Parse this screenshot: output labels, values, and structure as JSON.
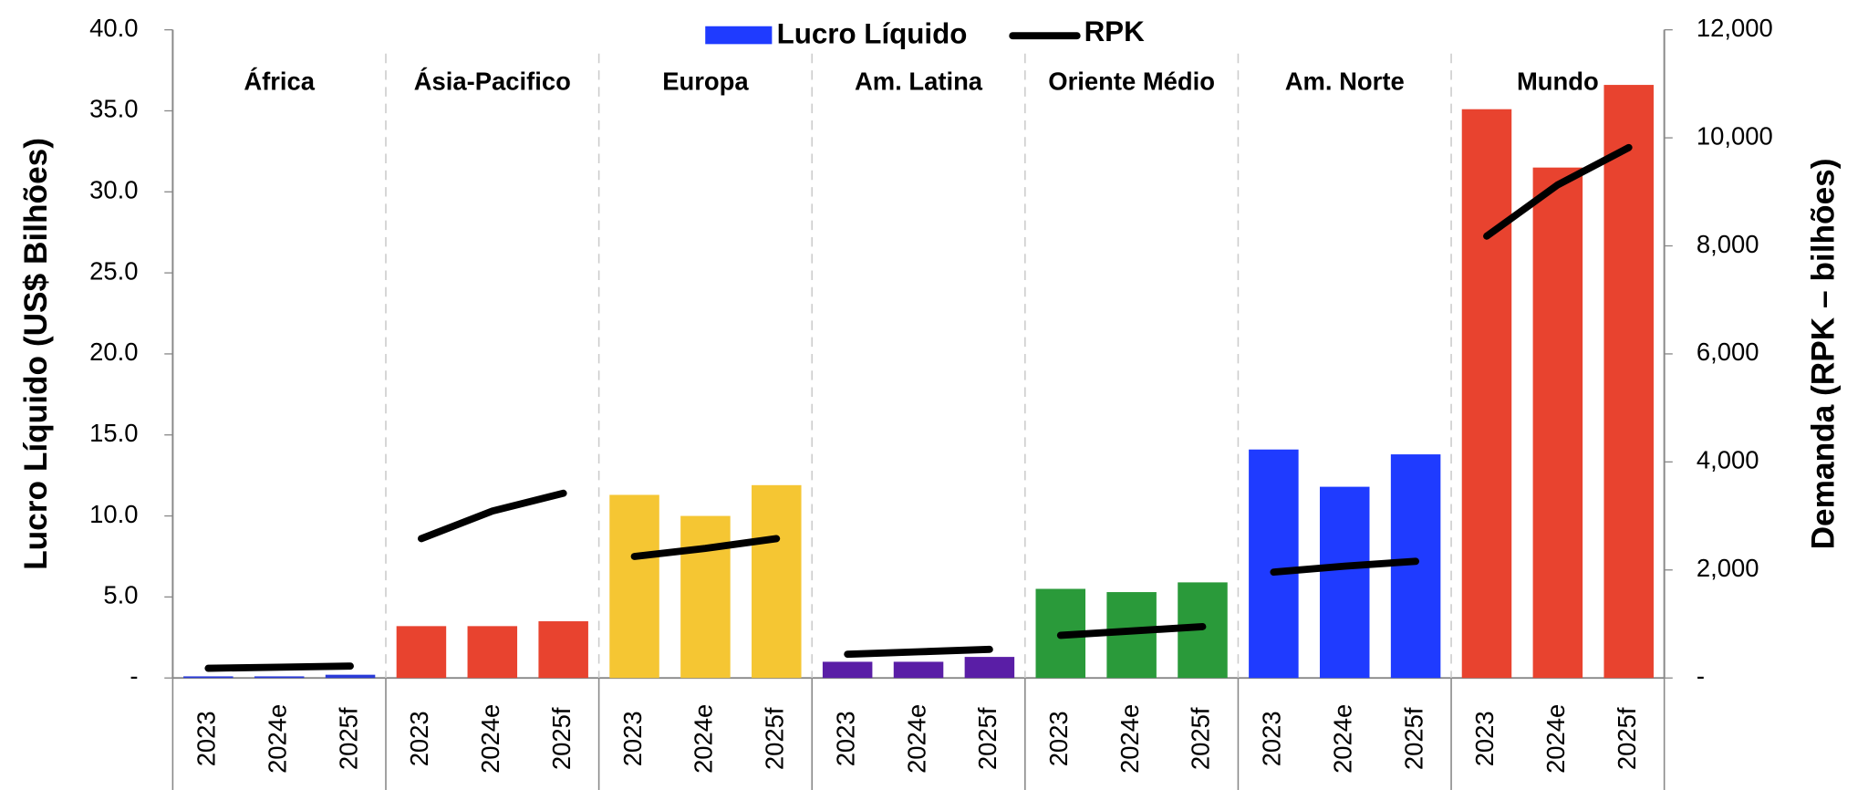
{
  "chart_data": {
    "type": "bar",
    "y_label": "Lucro Líquido (US$ Bilhões)",
    "y2_label": "Demanda (RPK – bilhões)",
    "ylim": [
      0,
      40
    ],
    "yticks": [
      {
        "value": 0,
        "label": "-"
      },
      {
        "value": 5,
        "label": "5.0"
      },
      {
        "value": 10,
        "label": "10.0"
      },
      {
        "value": 15,
        "label": "15.0"
      },
      {
        "value": 20,
        "label": "20.0"
      },
      {
        "value": 25,
        "label": "25.0"
      },
      {
        "value": 30,
        "label": "30.0"
      },
      {
        "value": 35,
        "label": "35.0"
      },
      {
        "value": 40,
        "label": "40.0"
      }
    ],
    "y2lim": [
      0,
      12000
    ],
    "y2ticks": [
      {
        "value": 0,
        "label": "-"
      },
      {
        "value": 2000,
        "label": "2,000"
      },
      {
        "value": 4000,
        "label": "4,000"
      },
      {
        "value": 6000,
        "label": "6,000"
      },
      {
        "value": 8000,
        "label": "8,000"
      },
      {
        "value": 10000,
        "label": "10,000"
      },
      {
        "value": 12000,
        "label": "12,000"
      }
    ],
    "groups": [
      {
        "name": "África",
        "categories": [
          "2023",
          "2024e",
          "2025f"
        ]
      },
      {
        "name": "Ásia-Pacifico",
        "categories": [
          "2023",
          "2024e",
          "2025f"
        ]
      },
      {
        "name": "Europa",
        "categories": [
          "2023",
          "2024e",
          "2025f"
        ]
      },
      {
        "name": "Am. Latina",
        "categories": [
          "2023",
          "2024e",
          "2025f"
        ]
      },
      {
        "name": "Oriente Médio",
        "categories": [
          "2023",
          "2024e",
          "2025f"
        ]
      },
      {
        "name": "Am. Norte",
        "categories": [
          "2023",
          "2024e",
          "2025f"
        ]
      },
      {
        "name": "Mundo",
        "categories": [
          "2023",
          "2024e",
          "2025f"
        ]
      }
    ],
    "series": [
      {
        "name": "Lucro Líquido",
        "color": "#1f3bff",
        "group_colors": [
          "#2a3bd8",
          "#e8432f",
          "#f5c633",
          "#5a1ea6",
          "#2a9a3a",
          "#1f3bff",
          "#e8432f"
        ],
        "values": [
          [
            0.1,
            0.1,
            0.2
          ],
          [
            3.2,
            3.2,
            3.5
          ],
          [
            11.3,
            10.0,
            11.9
          ],
          [
            1.0,
            1.0,
            1.3
          ],
          [
            5.5,
            5.3,
            5.9
          ],
          [
            14.1,
            11.8,
            13.8
          ],
          [
            35.1,
            31.5,
            36.6
          ]
        ]
      },
      {
        "name": "RPK",
        "color": "#000000",
        "axis": "y2",
        "values": [
          [
            180,
            200,
            220
          ],
          [
            2580,
            3090,
            3420
          ],
          [
            2250,
            2400,
            2580
          ],
          [
            440,
            485,
            530
          ],
          [
            790,
            870,
            950
          ],
          [
            1960,
            2070,
            2160
          ],
          [
            8180,
            9130,
            9820
          ]
        ]
      }
    ]
  }
}
